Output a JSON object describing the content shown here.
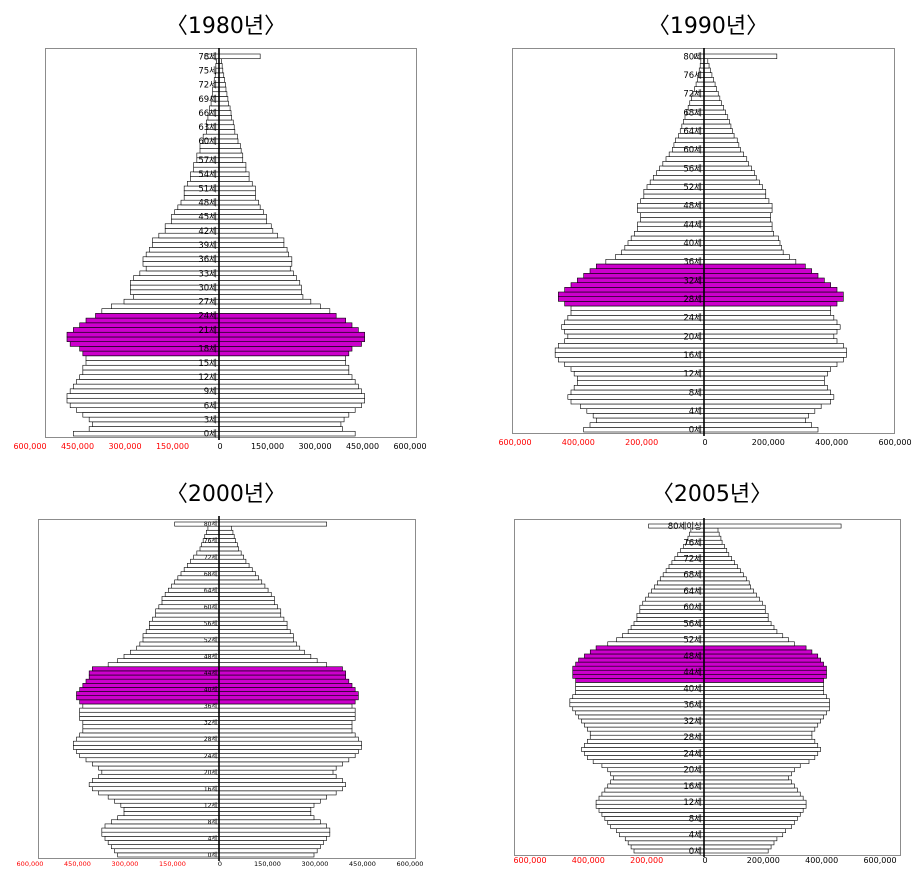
{
  "colors": {
    "bar_fill": "#ffffff",
    "bar_stroke": "#000000",
    "highlight": "#cc00cc",
    "neg_tick_text": "#ff0000",
    "pos_tick_text": "#000000"
  },
  "chart_data": [
    {
      "type": "bar",
      "orientation": "horizontal-butterfly",
      "title": "〈1980년〉",
      "xlim": [
        -600000,
        600000
      ],
      "x_ticks": [
        -600000,
        -450000,
        -300000,
        -150000,
        0,
        150000,
        300000,
        450000,
        600000
      ],
      "x_tick_labels": [
        "600,000",
        "450,000",
        "300,000",
        "150,000",
        "0",
        "150,000",
        "300,000",
        "450,000",
        "600,000"
      ],
      "age_labels": [
        "0세",
        "3세",
        "6세",
        "9세",
        "12세",
        "15세",
        "18세",
        "21세",
        "24세",
        "27세",
        "30세",
        "33세",
        "36세",
        "39세",
        "42세",
        "45세",
        "48세",
        "51세",
        "54세",
        "57세",
        "60세",
        "63세",
        "66세",
        "69세",
        "72세",
        "75세",
        "78세"
      ],
      "highlight_ages": [
        17,
        25
      ],
      "series": [
        {
          "name": "left",
          "values": [
            460000,
            410000,
            400000,
            410000,
            430000,
            450000,
            470000,
            480000,
            480000,
            470000,
            460000,
            450000,
            440000,
            430000,
            430000,
            420000,
            420000,
            430000,
            440000,
            470000,
            480000,
            480000,
            460000,
            440000,
            420000,
            390000,
            370000,
            340000,
            300000,
            270000,
            280000,
            280000,
            280000,
            270000,
            250000,
            230000,
            240000,
            240000,
            230000,
            220000,
            210000,
            210000,
            190000,
            170000,
            170000,
            150000,
            150000,
            140000,
            130000,
            120000,
            110000,
            110000,
            110000,
            100000,
            90000,
            90000,
            80000,
            80000,
            70000,
            70000,
            60000,
            60000,
            50000,
            50000,
            40000,
            40000,
            40000,
            35000,
            30000,
            30000,
            25000,
            25000,
            20000,
            20000,
            15000,
            15000,
            12000,
            10000,
            10000,
            8000,
            45000
          ]
        },
        {
          "name": "right",
          "values": [
            430000,
            390000,
            385000,
            395000,
            410000,
            430000,
            450000,
            460000,
            460000,
            450000,
            440000,
            430000,
            420000,
            410000,
            410000,
            400000,
            400000,
            410000,
            420000,
            450000,
            460000,
            460000,
            440000,
            420000,
            400000,
            370000,
            350000,
            320000,
            290000,
            265000,
            260000,
            260000,
            255000,
            245000,
            235000,
            225000,
            230000,
            230000,
            220000,
            215000,
            205000,
            205000,
            185000,
            170000,
            165000,
            150000,
            150000,
            140000,
            130000,
            125000,
            115000,
            115000,
            115000,
            105000,
            95000,
            95000,
            85000,
            85000,
            75000,
            75000,
            70000,
            68000,
            60000,
            58000,
            50000,
            48000,
            45000,
            40000,
            38000,
            35000,
            30000,
            28000,
            25000,
            22000,
            20000,
            18000,
            15000,
            12000,
            10000,
            8000,
            130000
          ]
        }
      ]
    },
    {
      "type": "bar",
      "orientation": "horizontal-butterfly",
      "title": "〈1990년〉",
      "xlim": [
        -600000,
        600000
      ],
      "x_ticks": [
        -600000,
        -400000,
        -200000,
        0,
        200000,
        400000,
        600000
      ],
      "x_tick_labels": [
        "600,000",
        "400,000",
        "200,000",
        "0",
        "200,000",
        "400,000",
        "600,000"
      ],
      "age_labels": [
        "0세",
        "4세",
        "8세",
        "12세",
        "16세",
        "20세",
        "24세",
        "28세",
        "32세",
        "36세",
        "40세",
        "44세",
        "48세",
        "52세",
        "56세",
        "60세",
        "64세",
        "68세",
        "72세",
        "76세",
        "80세"
      ],
      "highlight_ages": [
        27,
        35
      ],
      "series": [
        {
          "name": "left",
          "values": [
            380000,
            360000,
            340000,
            350000,
            370000,
            390000,
            420000,
            430000,
            420000,
            410000,
            400000,
            400000,
            410000,
            420000,
            440000,
            460000,
            470000,
            470000,
            460000,
            440000,
            430000,
            440000,
            450000,
            440000,
            430000,
            420000,
            420000,
            440000,
            460000,
            460000,
            440000,
            420000,
            400000,
            380000,
            360000,
            340000,
            310000,
            280000,
            260000,
            250000,
            240000,
            230000,
            220000,
            210000,
            210000,
            200000,
            200000,
            210000,
            210000,
            200000,
            190000,
            190000,
            180000,
            170000,
            160000,
            150000,
            140000,
            130000,
            120000,
            110000,
            100000,
            95000,
            90000,
            80000,
            75000,
            70000,
            65000,
            60000,
            55000,
            50000,
            45000,
            40000,
            35000,
            30000,
            25000,
            20000,
            18000,
            15000,
            12000,
            10000,
            30000
          ]
        },
        {
          "name": "right",
          "values": [
            360000,
            340000,
            320000,
            330000,
            350000,
            370000,
            400000,
            410000,
            400000,
            390000,
            380000,
            380000,
            390000,
            400000,
            420000,
            440000,
            450000,
            450000,
            440000,
            420000,
            410000,
            420000,
            430000,
            420000,
            410000,
            400000,
            400000,
            420000,
            440000,
            440000,
            420000,
            400000,
            380000,
            360000,
            340000,
            320000,
            290000,
            270000,
            250000,
            245000,
            240000,
            235000,
            220000,
            215000,
            215000,
            210000,
            210000,
            215000,
            215000,
            205000,
            195000,
            195000,
            185000,
            175000,
            165000,
            160000,
            150000,
            140000,
            135000,
            125000,
            115000,
            110000,
            105000,
            95000,
            90000,
            85000,
            80000,
            75000,
            68000,
            62000,
            55000,
            50000,
            45000,
            40000,
            35000,
            30000,
            25000,
            20000,
            16000,
            12000,
            230000
          ]
        }
      ]
    },
    {
      "type": "bar",
      "orientation": "horizontal-butterfly",
      "title": "〈2000년〉",
      "xlim": [
        -600000,
        600000
      ],
      "x_ticks": [
        -600000,
        -450000,
        -300000,
        -150000,
        0,
        150000,
        300000,
        450000,
        600000
      ],
      "x_tick_labels": [
        "600,000",
        "450,000",
        "300,000",
        "150,000",
        "0",
        "150,000",
        "300,000",
        "450,000",
        "600,000"
      ],
      "age_labels": [
        "0세",
        "4세",
        "8세",
        "12세",
        "16세",
        "20세",
        "24세",
        "28세",
        "32세",
        "36세",
        "40세",
        "44세",
        "48세",
        "52세",
        "56세",
        "60세",
        "64세",
        "68세",
        "72세",
        "76세",
        "80세"
      ],
      "highlight_ages": [
        37,
        45
      ],
      "series": [
        {
          "name": "left",
          "values": [
            320000,
            330000,
            340000,
            350000,
            360000,
            370000,
            370000,
            360000,
            340000,
            320000,
            300000,
            300000,
            310000,
            330000,
            350000,
            380000,
            400000,
            410000,
            400000,
            380000,
            370000,
            380000,
            400000,
            420000,
            440000,
            450000,
            460000,
            460000,
            450000,
            440000,
            430000,
            430000,
            430000,
            440000,
            440000,
            440000,
            430000,
            440000,
            450000,
            450000,
            440000,
            430000,
            420000,
            410000,
            410000,
            400000,
            350000,
            320000,
            300000,
            280000,
            260000,
            250000,
            240000,
            240000,
            230000,
            220000,
            220000,
            210000,
            200000,
            200000,
            190000,
            180000,
            180000,
            170000,
            160000,
            150000,
            140000,
            130000,
            120000,
            110000,
            100000,
            90000,
            80000,
            70000,
            60000,
            55000,
            50000,
            45000,
            40000,
            35000,
            140000
          ]
        },
        {
          "name": "right",
          "values": [
            300000,
            310000,
            320000,
            330000,
            340000,
            350000,
            350000,
            340000,
            320000,
            300000,
            290000,
            290000,
            300000,
            320000,
            340000,
            370000,
            390000,
            400000,
            390000,
            370000,
            360000,
            370000,
            390000,
            410000,
            430000,
            440000,
            450000,
            450000,
            440000,
            430000,
            420000,
            420000,
            420000,
            430000,
            430000,
            430000,
            420000,
            430000,
            440000,
            440000,
            430000,
            420000,
            410000,
            400000,
            400000,
            390000,
            340000,
            310000,
            290000,
            270000,
            255000,
            245000,
            235000,
            235000,
            225000,
            215000,
            215000,
            205000,
            195000,
            195000,
            185000,
            175000,
            175000,
            165000,
            155000,
            145000,
            135000,
            125000,
            115000,
            105000,
            95000,
            85000,
            78000,
            70000,
            62000,
            58000,
            52000,
            48000,
            44000,
            40000,
            340000
          ]
        }
      ]
    },
    {
      "type": "bar",
      "orientation": "horizontal-butterfly",
      "title": "〈2005년〉",
      "xlim": [
        -600000,
        600000
      ],
      "x_ticks": [
        -600000,
        -400000,
        -200000,
        0,
        200000,
        400000,
        600000
      ],
      "x_tick_labels": [
        "600,000",
        "400,000",
        "200,000",
        "0",
        "200,000",
        "400,000",
        "600,000"
      ],
      "age_labels": [
        "0세",
        "4세",
        "8세",
        "12세",
        "16세",
        "20세",
        "24세",
        "28세",
        "32세",
        "36세",
        "40세",
        "44세",
        "48세",
        "52세",
        "56세",
        "60세",
        "64세",
        "68세",
        "72세",
        "76세",
        "80세이상"
      ],
      "highlight_ages": [
        42,
        50
      ],
      "series": [
        {
          "name": "left",
          "values": [
            240000,
            250000,
            260000,
            270000,
            290000,
            300000,
            320000,
            330000,
            340000,
            350000,
            360000,
            370000,
            370000,
            360000,
            350000,
            340000,
            330000,
            320000,
            310000,
            320000,
            330000,
            350000,
            380000,
            400000,
            410000,
            420000,
            410000,
            400000,
            390000,
            390000,
            400000,
            410000,
            420000,
            430000,
            440000,
            450000,
            460000,
            460000,
            450000,
            440000,
            440000,
            440000,
            440000,
            450000,
            450000,
            450000,
            440000,
            430000,
            410000,
            390000,
            370000,
            330000,
            300000,
            280000,
            260000,
            250000,
            240000,
            230000,
            230000,
            220000,
            220000,
            210000,
            200000,
            190000,
            180000,
            170000,
            160000,
            150000,
            140000,
            130000,
            120000,
            110000,
            100000,
            90000,
            80000,
            70000,
            60000,
            55000,
            50000,
            45000,
            190000
          ]
        },
        {
          "name": "right",
          "values": [
            220000,
            230000,
            240000,
            250000,
            270000,
            280000,
            300000,
            310000,
            320000,
            330000,
            340000,
            350000,
            350000,
            340000,
            330000,
            320000,
            310000,
            300000,
            290000,
            300000,
            310000,
            330000,
            360000,
            380000,
            390000,
            400000,
            390000,
            380000,
            370000,
            370000,
            380000,
            390000,
            400000,
            410000,
            420000,
            430000,
            430000,
            430000,
            420000,
            410000,
            410000,
            410000,
            410000,
            420000,
            420000,
            420000,
            410000,
            400000,
            390000,
            370000,
            350000,
            310000,
            290000,
            270000,
            250000,
            240000,
            230000,
            220000,
            220000,
            210000,
            210000,
            200000,
            190000,
            180000,
            170000,
            160000,
            155000,
            145000,
            135000,
            125000,
            115000,
            105000,
            95000,
            85000,
            78000,
            70000,
            62000,
            58000,
            52000,
            48000,
            470000
          ]
        }
      ]
    }
  ]
}
